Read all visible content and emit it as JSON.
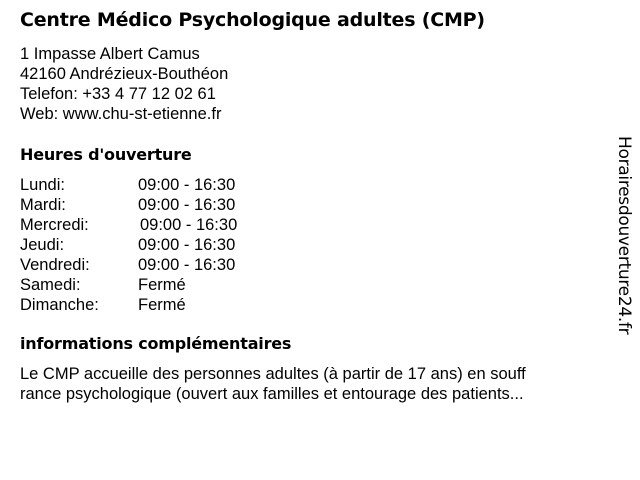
{
  "title": "Centre Médico Psychologique adultes (CMP)",
  "address": {
    "street": "1 Impasse Albert Camus",
    "city": "42160 Andrézieux-Bouthéon",
    "phone": "Telefon: +33 4 77 12 02 61",
    "web": "Web: www.chu-st-etienne.fr"
  },
  "hours_heading": "Heures d'ouverture",
  "hours": [
    {
      "day": "Lundi:",
      "time": "09:00 - 16:30"
    },
    {
      "day": "Mardi:",
      "time": "09:00 - 16:30"
    },
    {
      "day": "Mercredi:",
      "time": "09:00 - 16:30"
    },
    {
      "day": "Jeudi:",
      "time": "09:00 - 16:30"
    },
    {
      "day": "Vendredi:",
      "time": "09:00 - 16:30"
    },
    {
      "day": "Samedi:",
      "time": "Fermé"
    },
    {
      "day": "Dimanche:",
      "time": "Fermé"
    }
  ],
  "info_heading": "informations complémentaires",
  "info_lines": [
    "Le CMP accueille des personnes adultes (à partir de 17 ans) en souff",
    "rance psychologique (ouvert aux familles et entourage des patients..."
  ],
  "watermark": "Horairesdouverture24.fr"
}
